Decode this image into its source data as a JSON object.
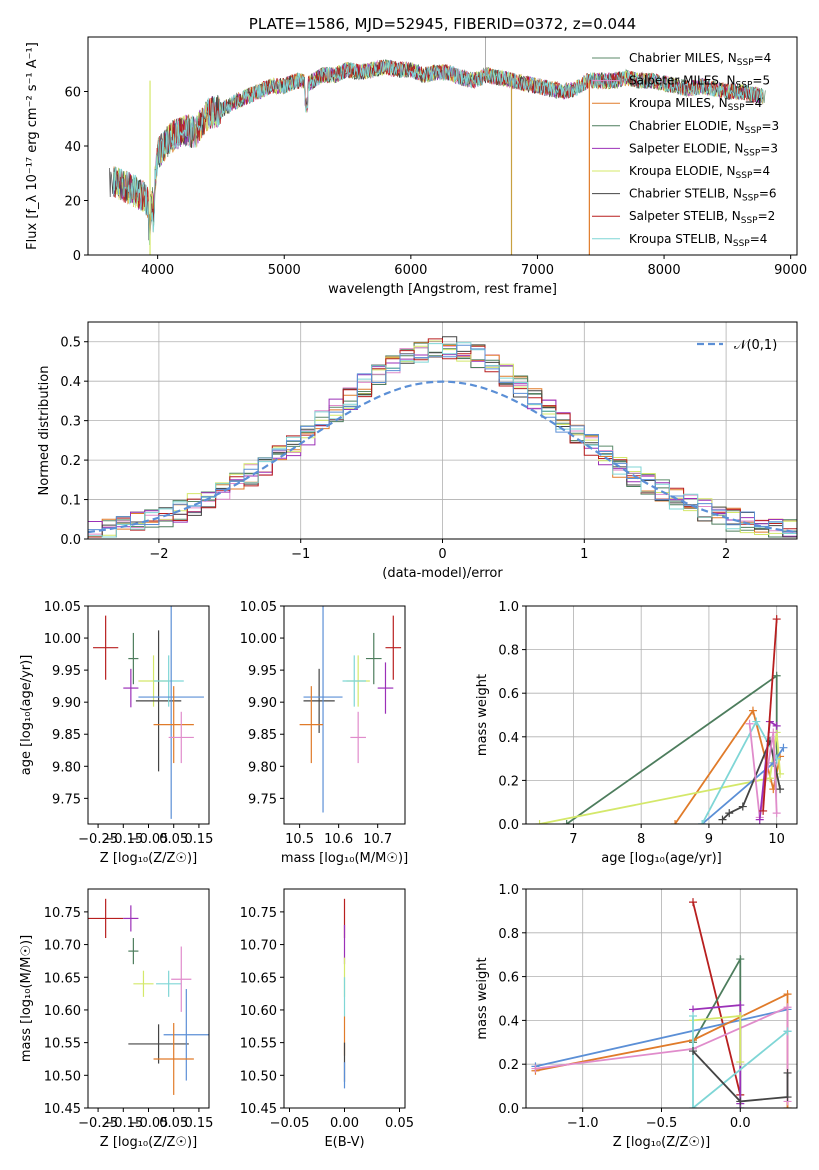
{
  "chart_data": [
    {
      "id": "spectrum",
      "type": "line",
      "title": "PLATE=1586, MJD=52945, FIBERID=0372, z=0.044",
      "xlabel": "wavelength [Angstrom, rest frame]",
      "ylabel": "Flux [f_λ 10⁻¹⁷ erg cm⁻² s⁻¹ A⁻¹]",
      "xlim": [
        3450,
        9050
      ],
      "ylim": [
        0,
        80
      ],
      "xticks": [
        4000,
        5000,
        6000,
        7000,
        8000,
        9000
      ],
      "yticks": [
        0,
        20,
        40,
        60
      ],
      "legend": "upper right",
      "grid": false,
      "series": [
        {
          "name": "Chabrier MILES, N_SSP=4",
          "color": "#5b8a6a"
        },
        {
          "name": "Salpeter MILES, N_SSP=5",
          "color": "#e08ccb"
        },
        {
          "name": "Kroupa MILES, N_SSP=4",
          "color": "#e07b2a"
        },
        {
          "name": "Chabrier ELODIE, N_SSP=3",
          "color": "#4d7d5d"
        },
        {
          "name": "Salpeter ELODIE, N_SSP=3",
          "color": "#9b30b8"
        },
        {
          "name": "Kroupa ELODIE, N_SSP=4",
          "color": "#d4e86a"
        },
        {
          "name": "Chabrier STELIB, N_SSP=6",
          "color": "#444444"
        },
        {
          "name": "Salpeter STELIB, N_SSP=2",
          "color": "#b81f1f"
        },
        {
          "name": "Kroupa STELIB, N_SSP=4",
          "color": "#7fd6d6"
        }
      ],
      "continuum": {
        "x": [
          3620,
          3700,
          3800,
          3900,
          3950,
          4000,
          4100,
          4200,
          4300,
          4400,
          4500,
          4600,
          4700,
          4800,
          4900,
          5000,
          5100,
          5200,
          5300,
          5400,
          5500,
          5600,
          5700,
          5800,
          5900,
          6000,
          6100,
          6200,
          6300,
          6400,
          6500,
          6600,
          6700,
          6800,
          6900,
          7000,
          7100,
          7200,
          7300,
          7400,
          7500,
          7600,
          7700,
          7800,
          7900,
          8000,
          8100,
          8200,
          8300,
          8400,
          8500,
          8600,
          8700,
          8800
        ],
        "y": [
          27,
          26,
          24,
          21,
          16,
          37,
          43,
          46,
          45,
          52,
          53,
          56,
          58,
          60,
          62,
          62,
          64,
          63,
          66,
          66,
          68,
          67,
          68,
          69,
          68,
          68,
          66,
          67,
          67,
          65,
          64,
          66,
          65,
          64,
          63,
          62,
          61,
          60,
          61,
          64,
          64,
          64,
          65,
          64,
          64,
          63,
          62,
          61,
          62,
          61,
          60,
          60,
          59,
          58
        ]
      }
    },
    {
      "id": "residuals",
      "type": "line",
      "xlabel": "(data-model)/error",
      "ylabel": "Normed distribution",
      "xlim": [
        -2.5,
        2.5
      ],
      "ylim": [
        0,
        0.55
      ],
      "xticks": [
        -2,
        -1,
        0,
        1,
        2
      ],
      "yticks": [
        0.0,
        0.1,
        0.2,
        0.3,
        0.4,
        0.5
      ],
      "legend": "upper right",
      "grid": true,
      "reference": {
        "name": "𝒩(0,1)",
        "color": "#5b8fd6"
      }
    },
    {
      "id": "age-vs-z",
      "type": "scatter",
      "xlabel": "Z [log₁₀(Z/Z☉)]",
      "ylabel": "age  [log₁₀(age/yr)]",
      "xlim": [
        -0.29,
        0.19
      ],
      "ylim": [
        9.71,
        10.05
      ],
      "xticks": [
        -0.25,
        -0.15,
        -0.05,
        0.05,
        0.15
      ],
      "yticks": [
        9.75,
        9.8,
        9.85,
        9.9,
        9.95,
        10.0,
        10.05
      ],
      "points": [
        {
          "x": -0.22,
          "y": 9.985,
          "xerr": 0.05,
          "yerr": 0.05,
          "color": "#b81f1f"
        },
        {
          "x": -0.12,
          "y": 9.922,
          "xerr": 0.03,
          "yerr": 0.03,
          "color": "#9b30b8"
        },
        {
          "x": -0.11,
          "y": 9.968,
          "xerr": 0.02,
          "yerr": 0.04,
          "color": "#4d7d5d"
        },
        {
          "x": -0.03,
          "y": 9.933,
          "xerr": 0.06,
          "yerr": 0.04,
          "color": "#d4e86a"
        },
        {
          "x": -0.01,
          "y": 9.902,
          "xerr": 0.09,
          "yerr": 0.11,
          "color": "#444444"
        },
        {
          "x": 0.03,
          "y": 9.933,
          "xerr": 0.06,
          "yerr": 0.04,
          "color": "#7fd6d6"
        },
        {
          "x": 0.04,
          "y": 9.908,
          "xerr": 0.13,
          "yerr": 0.19,
          "color": "#5b8fd6"
        },
        {
          "x": 0.05,
          "y": 9.865,
          "xerr": 0.08,
          "yerr": 0.06,
          "color": "#e07b2a"
        },
        {
          "x": 0.08,
          "y": 9.845,
          "xerr": 0.05,
          "yerr": 0.04,
          "color": "#e08ccb"
        }
      ]
    },
    {
      "id": "age-vs-mass",
      "type": "scatter",
      "xlabel": "mass [log₁₀(M/M☉)]",
      "ylabel": "",
      "xlim": [
        10.46,
        10.77
      ],
      "ylim": [
        9.71,
        10.05
      ],
      "xticks": [
        10.5,
        10.6,
        10.7
      ],
      "yticks": [
        9.75,
        9.8,
        9.85,
        9.9,
        9.95,
        10.0,
        10.05
      ],
      "points": [
        {
          "x": 10.74,
          "y": 9.985,
          "xerr": 0.02,
          "yerr": 0.05,
          "color": "#b81f1f"
        },
        {
          "x": 10.72,
          "y": 9.922,
          "xerr": 0.02,
          "yerr": 0.04,
          "color": "#9b30b8"
        },
        {
          "x": 10.69,
          "y": 9.968,
          "xerr": 0.02,
          "yerr": 0.04,
          "color": "#4d7d5d"
        },
        {
          "x": 10.65,
          "y": 9.933,
          "xerr": 0.03,
          "yerr": 0.04,
          "color": "#d4e86a"
        },
        {
          "x": 10.55,
          "y": 9.902,
          "xerr": 0.04,
          "yerr": 0.05,
          "color": "#444444"
        },
        {
          "x": 10.64,
          "y": 9.933,
          "xerr": 0.03,
          "yerr": 0.04,
          "color": "#7fd6d6"
        },
        {
          "x": 10.56,
          "y": 9.908,
          "xerr": 0.05,
          "yerr": 0.18,
          "color": "#5b8fd6"
        },
        {
          "x": 10.53,
          "y": 9.865,
          "xerr": 0.03,
          "yerr": 0.06,
          "color": "#e07b2a"
        },
        {
          "x": 10.65,
          "y": 9.845,
          "xerr": 0.02,
          "yerr": 0.04,
          "color": "#e08ccb"
        }
      ]
    },
    {
      "id": "weight-vs-age",
      "type": "line",
      "xlabel": "age  [log₁₀(age/yr)]",
      "ylabel": "mass weight",
      "xlim": [
        6.3,
        10.3
      ],
      "ylim": [
        0,
        1.0
      ],
      "xticks": [
        7,
        8,
        9,
        10
      ],
      "yticks": [
        0.0,
        0.2,
        0.4,
        0.6,
        0.8,
        1.0
      ],
      "grid": true,
      "series": [
        {
          "color": "#4d7d5d",
          "x": [
            6.9,
            10.0,
            10.0
          ],
          "y": [
            0.0,
            0.68,
            0.3
          ]
        },
        {
          "color": "#e07b2a",
          "x": [
            8.5,
            9.65,
            9.95,
            10.05
          ],
          "y": [
            0.0,
            0.52,
            0.16,
            0.31
          ]
        },
        {
          "color": "#d4e86a",
          "x": [
            6.5,
            9.9,
            10.0,
            10.05
          ],
          "y": [
            0.0,
            0.21,
            0.42,
            0.23
          ]
        },
        {
          "color": "#5b8fd6",
          "x": [
            8.9,
            9.95,
            10.1
          ],
          "y": [
            0.0,
            0.28,
            0.35
          ]
        },
        {
          "color": "#7fd6d6",
          "x": [
            8.9,
            9.7,
            10.0
          ],
          "y": [
            0.0,
            0.47,
            0.3
          ]
        },
        {
          "color": "#444444",
          "x": [
            9.2,
            9.3,
            9.5,
            9.9,
            10.05
          ],
          "y": [
            0.02,
            0.05,
            0.08,
            0.38,
            0.16
          ]
        },
        {
          "color": "#e08ccb",
          "x": [
            9.6,
            9.75,
            9.95,
            10.0
          ],
          "y": [
            0.46,
            0.03,
            0.42,
            0.05
          ]
        },
        {
          "color": "#9b30b8",
          "x": [
            9.75,
            9.9,
            10.0
          ],
          "y": [
            0.02,
            0.47,
            0.45
          ]
        },
        {
          "color": "#b81f1f",
          "x": [
            9.8,
            10.0
          ],
          "y": [
            0.06,
            0.94
          ]
        }
      ]
    },
    {
      "id": "mass-vs-z",
      "type": "scatter",
      "xlabel": "Z [log₁₀(Z/Z☉)]",
      "ylabel": "mass [log₁₀(M/M☉)]",
      "xlim": [
        -0.29,
        0.19
      ],
      "ylim": [
        10.45,
        10.785
      ],
      "xticks": [
        -0.25,
        -0.15,
        -0.05,
        0.05,
        0.15
      ],
      "yticks": [
        10.45,
        10.5,
        10.55,
        10.6,
        10.65,
        10.7,
        10.75
      ],
      "points": [
        {
          "x": -0.22,
          "y": 10.74,
          "xerr": 0.07,
          "yerr": 0.03,
          "color": "#b81f1f"
        },
        {
          "x": -0.12,
          "y": 10.74,
          "xerr": 0.03,
          "yerr": 0.02,
          "color": "#9b30b8"
        },
        {
          "x": -0.11,
          "y": 10.69,
          "xerr": 0.02,
          "yerr": 0.02,
          "color": "#4d7d5d"
        },
        {
          "x": -0.07,
          "y": 10.64,
          "xerr": 0.04,
          "yerr": 0.02,
          "color": "#d4e86a"
        },
        {
          "x": -0.01,
          "y": 10.548,
          "xerr": 0.12,
          "yerr": 0.03,
          "color": "#444444"
        },
        {
          "x": 0.03,
          "y": 10.64,
          "xerr": 0.05,
          "yerr": 0.02,
          "color": "#7fd6d6"
        },
        {
          "x": 0.1,
          "y": 10.562,
          "xerr": 0.09,
          "yerr": 0.07,
          "color": "#5b8fd6"
        },
        {
          "x": 0.05,
          "y": 10.525,
          "xerr": 0.08,
          "yerr": 0.055,
          "color": "#e07b2a"
        },
        {
          "x": 0.08,
          "y": 10.647,
          "xerr": 0.04,
          "yerr": 0.05,
          "color": "#e08ccb"
        }
      ]
    },
    {
      "id": "mass-vs-ebv",
      "type": "scatter",
      "xlabel": "E(B-V)",
      "ylabel": "",
      "xlim": [
        -0.055,
        0.055
      ],
      "ylim": [
        10.45,
        10.785
      ],
      "xticks": [
        -0.05,
        0.0,
        0.05
      ],
      "yticks": [
        10.45,
        10.5,
        10.55,
        10.6,
        10.65,
        10.7,
        10.75
      ],
      "points": [
        {
          "x": 0.0,
          "y": 10.74,
          "xerr": 0.0,
          "yerr": 0.03,
          "color": "#b81f1f"
        },
        {
          "x": 0.0,
          "y": 10.7,
          "xerr": 0.0,
          "yerr": 0.03,
          "color": "#9b30b8"
        },
        {
          "x": 0.0,
          "y": 10.65,
          "xerr": 0.0,
          "yerr": 0.03,
          "color": "#d4e86a"
        },
        {
          "x": 0.0,
          "y": 10.62,
          "xerr": 0.0,
          "yerr": 0.03,
          "color": "#7fd6d6"
        },
        {
          "x": 0.0,
          "y": 10.56,
          "xerr": 0.0,
          "yerr": 0.03,
          "color": "#e07b2a"
        },
        {
          "x": 0.0,
          "y": 10.52,
          "xerr": 0.0,
          "yerr": 0.03,
          "color": "#444444"
        },
        {
          "x": 0.0,
          "y": 10.5,
          "xerr": 0.0,
          "yerr": 0.02,
          "color": "#5b8fd6"
        }
      ]
    },
    {
      "id": "weight-vs-z",
      "type": "line",
      "xlabel": "Z [log₁₀(Z/Z☉)]",
      "ylabel": "mass weight",
      "xlim": [
        -1.36,
        0.36
      ],
      "ylim": [
        0,
        1.0
      ],
      "xticks": [
        -1.0,
        -0.5,
        0.0
      ],
      "yticks": [
        0.0,
        0.2,
        0.4,
        0.6,
        0.8,
        1.0
      ],
      "grid": true,
      "series": [
        {
          "color": "#b81f1f",
          "x": [
            -0.3,
            0.0
          ],
          "y": [
            0.94,
            0.06
          ]
        },
        {
          "color": "#4d7d5d",
          "x": [
            -0.3,
            0.0,
            0.0
          ],
          "y": [
            0.3,
            0.68,
            0.0
          ]
        },
        {
          "color": "#5b8fd6",
          "x": [
            -1.3,
            0.3,
            0.3
          ],
          "y": [
            0.19,
            0.45,
            0.35
          ]
        },
        {
          "color": "#e07b2a",
          "x": [
            -1.3,
            -0.3,
            0.3,
            0.3
          ],
          "y": [
            0.17,
            0.31,
            0.52,
            0.0
          ]
        },
        {
          "color": "#e08ccb",
          "x": [
            -1.3,
            -0.3,
            0.3,
            0.3
          ],
          "y": [
            0.18,
            0.27,
            0.46,
            0.03
          ]
        },
        {
          "color": "#9b30b8",
          "x": [
            -0.3,
            0.0,
            0.0
          ],
          "y": [
            0.45,
            0.47,
            0.02
          ]
        },
        {
          "color": "#d4e86a",
          "x": [
            -0.3,
            0.0,
            0.0
          ],
          "y": [
            0.4,
            0.42,
            0.21
          ]
        },
        {
          "color": "#7fd6d6",
          "x": [
            -0.3,
            -0.3,
            0.3
          ],
          "y": [
            0.42,
            0.0,
            0.35
          ]
        },
        {
          "color": "#444444",
          "x": [
            -0.3,
            0.0,
            0.3,
            0.3
          ],
          "y": [
            0.26,
            0.03,
            0.05,
            0.16
          ]
        }
      ]
    }
  ]
}
